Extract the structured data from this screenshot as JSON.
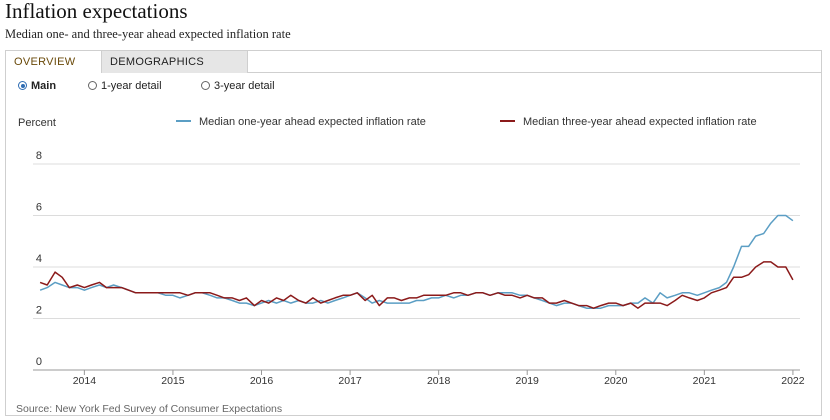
{
  "header": {
    "title": "Inflation expectations",
    "subtitle": "Median one- and three-year ahead expected inflation rate"
  },
  "tabs": [
    {
      "label": "OVERVIEW",
      "active": true
    },
    {
      "label": "DEMOGRAPHICS",
      "active": false
    }
  ],
  "radios": [
    {
      "label": "Main",
      "checked": true
    },
    {
      "label": "1-year detail",
      "checked": false
    },
    {
      "label": "3-year detail",
      "checked": false
    }
  ],
  "source": "Source: New York Fed Survey of Consumer Expectations",
  "chart_data": {
    "type": "line",
    "title": "",
    "xlabel": "",
    "ylabel": "Percent",
    "ylim": [
      0,
      8
    ],
    "yticks": [
      0,
      2,
      4,
      6,
      8
    ],
    "xlim": [
      2013.42,
      2022.08
    ],
    "xticks": [
      2014,
      2015,
      2016,
      2017,
      2018,
      2019,
      2020,
      2021,
      2022
    ],
    "grid": true,
    "legend_position": "top-right",
    "series": [
      {
        "name": "Median one-year ahead expected inflation rate",
        "color": "#5b9ec4",
        "x": [
          2013.5,
          2013.58,
          2013.67,
          2013.75,
          2013.83,
          2013.92,
          2014.0,
          2014.08,
          2014.17,
          2014.25,
          2014.33,
          2014.42,
          2014.5,
          2014.58,
          2014.67,
          2014.75,
          2014.83,
          2014.92,
          2015.0,
          2015.08,
          2015.17,
          2015.25,
          2015.33,
          2015.42,
          2015.5,
          2015.58,
          2015.67,
          2015.75,
          2015.83,
          2015.92,
          2016.0,
          2016.08,
          2016.17,
          2016.25,
          2016.33,
          2016.42,
          2016.5,
          2016.58,
          2016.67,
          2016.75,
          2016.83,
          2016.92,
          2017.0,
          2017.08,
          2017.17,
          2017.25,
          2017.33,
          2017.42,
          2017.5,
          2017.58,
          2017.67,
          2017.75,
          2017.83,
          2017.92,
          2018.0,
          2018.08,
          2018.17,
          2018.25,
          2018.33,
          2018.42,
          2018.5,
          2018.58,
          2018.67,
          2018.75,
          2018.83,
          2018.92,
          2019.0,
          2019.08,
          2019.17,
          2019.25,
          2019.33,
          2019.42,
          2019.5,
          2019.58,
          2019.67,
          2019.75,
          2019.83,
          2019.92,
          2020.0,
          2020.08,
          2020.17,
          2020.25,
          2020.33,
          2020.42,
          2020.5,
          2020.58,
          2020.67,
          2020.75,
          2020.83,
          2020.92,
          2021.0,
          2021.08,
          2021.17,
          2021.25,
          2021.33,
          2021.42,
          2021.5,
          2021.58,
          2021.67,
          2021.75,
          2021.83,
          2021.92,
          2022.0
        ],
        "values": [
          3.1,
          3.2,
          3.4,
          3.3,
          3.2,
          3.2,
          3.1,
          3.2,
          3.3,
          3.2,
          3.3,
          3.2,
          3.1,
          3.0,
          3.0,
          3.0,
          3.0,
          2.9,
          2.9,
          2.8,
          2.9,
          3.0,
          3.0,
          2.9,
          2.8,
          2.8,
          2.7,
          2.6,
          2.6,
          2.5,
          2.6,
          2.7,
          2.6,
          2.7,
          2.6,
          2.7,
          2.6,
          2.6,
          2.7,
          2.6,
          2.7,
          2.8,
          2.9,
          3.0,
          2.8,
          2.6,
          2.7,
          2.6,
          2.6,
          2.6,
          2.6,
          2.7,
          2.7,
          2.8,
          2.8,
          2.9,
          2.8,
          2.9,
          2.9,
          3.0,
          3.0,
          2.9,
          3.0,
          3.0,
          3.0,
          2.9,
          2.9,
          2.8,
          2.7,
          2.6,
          2.5,
          2.6,
          2.6,
          2.5,
          2.4,
          2.4,
          2.4,
          2.5,
          2.5,
          2.5,
          2.6,
          2.6,
          2.8,
          2.6,
          3.0,
          2.8,
          2.9,
          3.0,
          3.0,
          2.9,
          3.0,
          3.1,
          3.2,
          3.4,
          4.0,
          4.8,
          4.8,
          5.2,
          5.3,
          5.7,
          6.0,
          6.0,
          5.8
        ]
      },
      {
        "name": "Median three-year ahead expected inflation rate",
        "color": "#8b1a1a",
        "x": [
          2013.5,
          2013.58,
          2013.67,
          2013.75,
          2013.83,
          2013.92,
          2014.0,
          2014.08,
          2014.17,
          2014.25,
          2014.33,
          2014.42,
          2014.5,
          2014.58,
          2014.67,
          2014.75,
          2014.83,
          2014.92,
          2015.0,
          2015.08,
          2015.17,
          2015.25,
          2015.33,
          2015.42,
          2015.5,
          2015.58,
          2015.67,
          2015.75,
          2015.83,
          2015.92,
          2016.0,
          2016.08,
          2016.17,
          2016.25,
          2016.33,
          2016.42,
          2016.5,
          2016.58,
          2016.67,
          2016.75,
          2016.83,
          2016.92,
          2017.0,
          2017.08,
          2017.17,
          2017.25,
          2017.33,
          2017.42,
          2017.5,
          2017.58,
          2017.67,
          2017.75,
          2017.83,
          2017.92,
          2018.0,
          2018.08,
          2018.17,
          2018.25,
          2018.33,
          2018.42,
          2018.5,
          2018.58,
          2018.67,
          2018.75,
          2018.83,
          2018.92,
          2019.0,
          2019.08,
          2019.17,
          2019.25,
          2019.33,
          2019.42,
          2019.5,
          2019.58,
          2019.67,
          2019.75,
          2019.83,
          2019.92,
          2020.0,
          2020.08,
          2020.17,
          2020.25,
          2020.33,
          2020.42,
          2020.5,
          2020.58,
          2020.67,
          2020.75,
          2020.83,
          2020.92,
          2021.0,
          2021.08,
          2021.17,
          2021.25,
          2021.33,
          2021.42,
          2021.5,
          2021.58,
          2021.67,
          2021.75,
          2021.83,
          2021.92,
          2022.0
        ],
        "values": [
          3.4,
          3.3,
          3.8,
          3.6,
          3.2,
          3.3,
          3.2,
          3.3,
          3.4,
          3.2,
          3.2,
          3.2,
          3.1,
          3.0,
          3.0,
          3.0,
          3.0,
          3.0,
          3.0,
          3.0,
          2.9,
          3.0,
          3.0,
          3.0,
          2.9,
          2.8,
          2.8,
          2.7,
          2.8,
          2.5,
          2.7,
          2.6,
          2.8,
          2.7,
          2.9,
          2.7,
          2.6,
          2.8,
          2.6,
          2.7,
          2.8,
          2.9,
          2.9,
          3.0,
          2.7,
          2.9,
          2.5,
          2.8,
          2.8,
          2.7,
          2.8,
          2.8,
          2.9,
          2.9,
          2.9,
          2.9,
          3.0,
          3.0,
          2.9,
          3.0,
          3.0,
          2.9,
          3.0,
          2.9,
          2.9,
          2.8,
          2.9,
          2.8,
          2.8,
          2.6,
          2.6,
          2.7,
          2.6,
          2.5,
          2.5,
          2.4,
          2.5,
          2.6,
          2.6,
          2.5,
          2.6,
          2.4,
          2.6,
          2.6,
          2.6,
          2.5,
          2.7,
          2.9,
          2.8,
          2.7,
          2.8,
          3.0,
          3.1,
          3.2,
          3.6,
          3.6,
          3.7,
          4.0,
          4.2,
          4.2,
          4.0,
          4.0,
          3.5
        ]
      }
    ]
  }
}
